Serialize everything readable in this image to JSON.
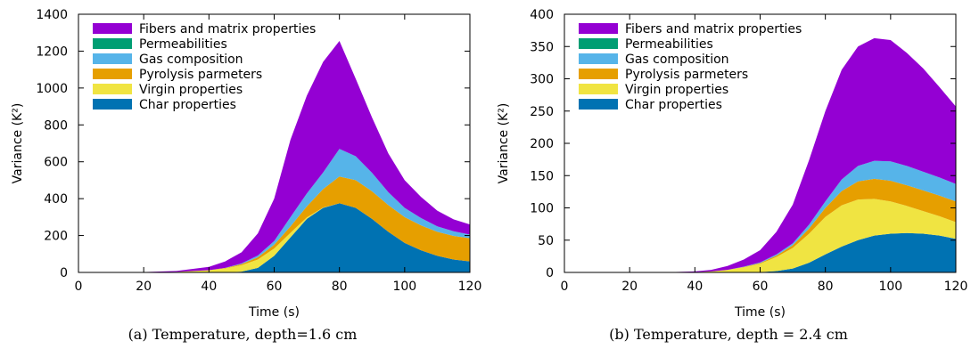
{
  "chart_data": [
    {
      "type": "area",
      "stacked": true,
      "caption": "(a)  Temperature, depth=1.6 cm",
      "xlabel": "Time (s)",
      "ylabel": "Variance (K²)",
      "xlim": [
        0,
        120
      ],
      "ylim": [
        0,
        1400
      ],
      "xticks": [
        0,
        20,
        40,
        60,
        80,
        100,
        120
      ],
      "yticks": [
        0,
        200,
        400,
        600,
        800,
        1000,
        1200,
        1400
      ],
      "grid": false,
      "legend_position": "top-left",
      "x": [
        0,
        20,
        30,
        40,
        45,
        50,
        55,
        60,
        65,
        70,
        75,
        80,
        85,
        90,
        95,
        100,
        105,
        110,
        115,
        120
      ],
      "series": [
        {
          "name": "Char properties",
          "color": "#0072b2",
          "values": [
            0,
            0,
            0,
            0,
            0,
            4,
            25,
            90,
            190,
            290,
            350,
            375,
            350,
            290,
            220,
            160,
            120,
            90,
            70,
            60
          ]
        },
        {
          "name": "Virgin properties",
          "color": "#f0e442",
          "values": [
            0,
            0,
            3,
            12,
            22,
            35,
            45,
            40,
            25,
            8,
            2,
            0,
            0,
            0,
            0,
            0,
            0,
            0,
            0,
            0
          ]
        },
        {
          "name": "Pyrolysis parmeters",
          "color": "#e69f00",
          "values": [
            0,
            0,
            0,
            0,
            2,
            6,
            12,
            20,
            35,
            60,
            100,
            145,
            150,
            150,
            145,
            140,
            135,
            130,
            128,
            125
          ]
        },
        {
          "name": "Gas composition",
          "color": "#56b4e9",
          "values": [
            0,
            0,
            0,
            0,
            1,
            4,
            10,
            20,
            50,
            70,
            90,
            150,
            130,
            100,
            70,
            50,
            40,
            30,
            25,
            20
          ]
        },
        {
          "name": "Permeabilities",
          "color": "#009e73",
          "values": [
            0,
            0,
            0,
            0,
            0,
            0,
            0,
            0,
            0,
            0,
            0,
            0,
            0,
            0,
            0,
            0,
            0,
            0,
            0,
            0
          ]
        },
        {
          "name": "Fibers and matrix properties",
          "color": "#9400d3",
          "values": [
            0,
            2,
            5,
            18,
            35,
            60,
            120,
            230,
            420,
            530,
            600,
            585,
            420,
            300,
            210,
            150,
            115,
            85,
            65,
            55
          ]
        }
      ]
    },
    {
      "type": "area",
      "stacked": true,
      "caption": "(b)  Temperature, depth = 2.4 cm",
      "xlabel": "Time (s)",
      "ylabel": "Variance (K²)",
      "xlim": [
        0,
        120
      ],
      "ylim": [
        0,
        400
      ],
      "xticks": [
        0,
        20,
        40,
        60,
        80,
        100,
        120
      ],
      "yticks": [
        0,
        50,
        100,
        150,
        200,
        250,
        300,
        350,
        400
      ],
      "grid": false,
      "legend_position": "top-left",
      "x": [
        0,
        20,
        30,
        40,
        45,
        50,
        55,
        60,
        65,
        70,
        75,
        80,
        85,
        90,
        95,
        100,
        105,
        110,
        115,
        120
      ],
      "series": [
        {
          "name": "Char properties",
          "color": "#0072b2",
          "values": [
            0,
            0,
            0,
            0,
            0,
            0,
            0,
            0.5,
            2,
            6,
            15,
            28,
            40,
            50,
            57,
            60,
            61,
            60,
            57,
            52
          ]
        },
        {
          "name": "Virgin properties",
          "color": "#f0e442",
          "values": [
            0,
            0,
            0,
            0.5,
            1.5,
            4,
            8,
            13,
            22,
            32,
            45,
            58,
            64,
            63,
            57,
            50,
            42,
            35,
            30,
            26
          ]
        },
        {
          "name": "Pyrolysis parmeters",
          "color": "#e69f00",
          "values": [
            0,
            0,
            0,
            0,
            0,
            0,
            0.5,
            1,
            2,
            4,
            8,
            14,
            22,
            28,
            31,
            32,
            32,
            32,
            32,
            32
          ]
        },
        {
          "name": "Gas composition",
          "color": "#56b4e9",
          "values": [
            0,
            0,
            0,
            0,
            0,
            0,
            0.5,
            1,
            2,
            3,
            6,
            10,
            18,
            24,
            28,
            30,
            30,
            29,
            28,
            27
          ]
        },
        {
          "name": "Permeabilities",
          "color": "#009e73",
          "values": [
            0,
            0,
            0,
            0,
            0,
            0,
            0,
            0,
            0,
            0,
            0,
            0,
            0,
            0,
            0,
            0,
            0,
            0,
            0,
            0
          ]
        },
        {
          "name": "Fibers and matrix properties",
          "color": "#9400d3",
          "values": [
            0,
            0,
            0.2,
            1,
            2.5,
            6,
            11,
            19,
            35,
            60,
            100,
            140,
            170,
            185,
            190,
            188,
            175,
            160,
            140,
            120
          ]
        }
      ]
    }
  ]
}
